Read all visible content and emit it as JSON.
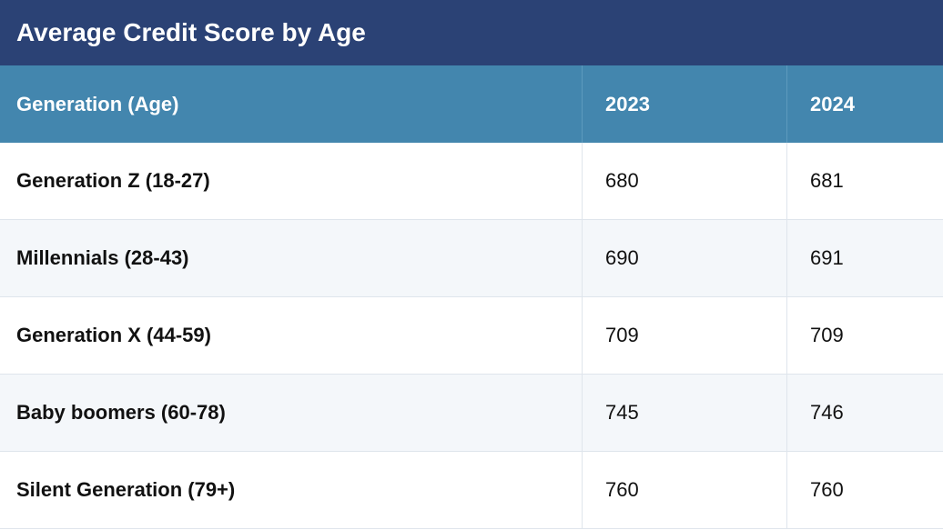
{
  "header": {
    "title": "Average Credit Score by Age"
  },
  "table": {
    "columns": [
      "Generation (Age)",
      "2023",
      "2024"
    ],
    "rows": [
      [
        "Generation Z (18-27)",
        680,
        681
      ],
      [
        "Millennials (28-43)",
        690,
        691
      ],
      [
        "Generation X (44-59)",
        709,
        709
      ],
      [
        "Baby boomers (60-78)",
        745,
        746
      ],
      [
        "Silent Generation (79+)",
        760,
        760
      ]
    ]
  }
}
